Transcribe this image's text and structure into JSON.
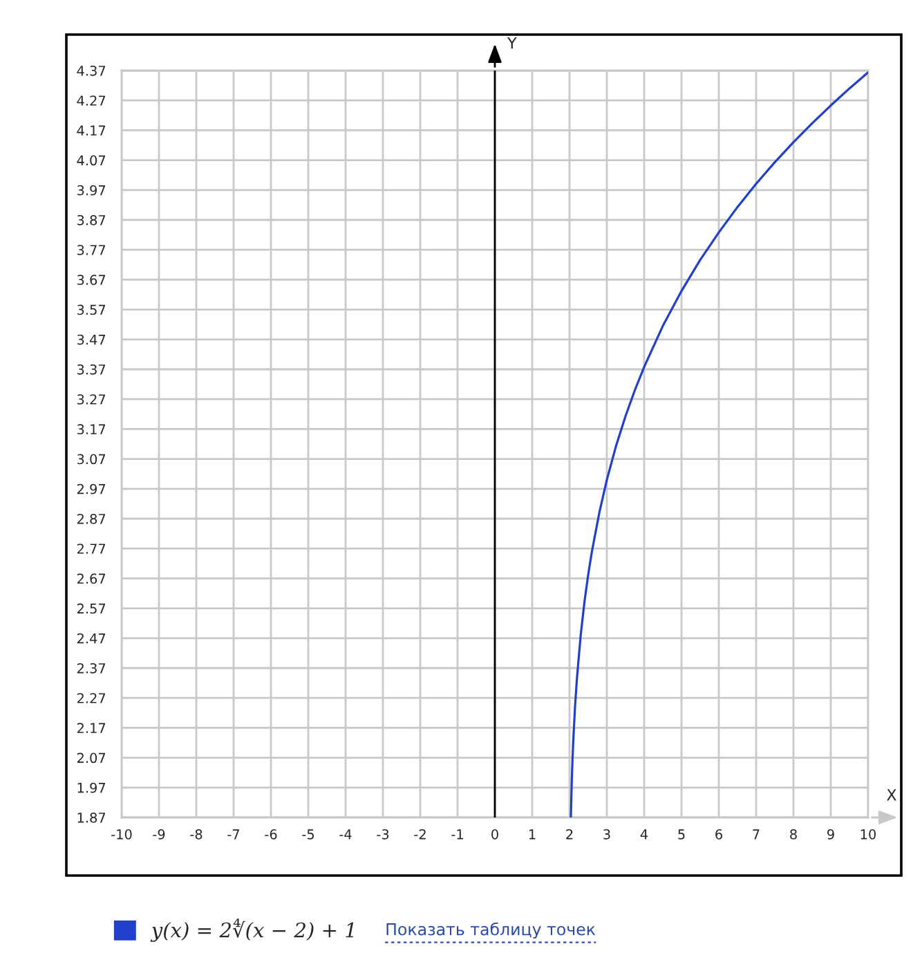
{
  "chart_data": {
    "type": "line",
    "xlabel": "X",
    "ylabel": "Y",
    "x": [
      2.036,
      2.06,
      2.08,
      2.1,
      2.15,
      2.2,
      2.3,
      2.4,
      2.5,
      2.6,
      2.8,
      3,
      3.25,
      3.5,
      3.75,
      4,
      4.5,
      5,
      5.5,
      6,
      6.5,
      7,
      7.5,
      8,
      8.5,
      9,
      9.5,
      10
    ],
    "series": [
      {
        "name": "y(x) = 2∜(x − 2) + 1",
        "color": "#1f3fcc",
        "values": [
          1.87,
          1.99,
          2.064,
          2.125,
          2.245,
          2.337,
          2.48,
          2.591,
          2.682,
          2.76,
          2.891,
          3.0,
          3.115,
          3.213,
          3.3,
          3.378,
          3.515,
          3.632,
          3.736,
          3.828,
          3.913,
          3.991,
          4.063,
          4.13,
          4.193,
          4.253,
          4.31,
          4.364
        ]
      }
    ],
    "xlim": [
      -10,
      10
    ],
    "ylim": [
      1.87,
      4.37
    ],
    "xticks": [
      -10,
      -9,
      -8,
      -7,
      -6,
      -5,
      -4,
      -3,
      -2,
      -1,
      0,
      1,
      2,
      3,
      4,
      5,
      6,
      7,
      8,
      9,
      10
    ],
    "yticks": [
      1.87,
      1.97,
      2.07,
      2.17,
      2.27,
      2.37,
      2.47,
      2.57,
      2.67,
      2.77,
      2.87,
      2.97,
      3.07,
      3.17,
      3.27,
      3.37,
      3.47,
      3.57,
      3.67,
      3.77,
      3.87,
      3.97,
      4.07,
      4.17,
      4.27,
      4.37
    ],
    "grid": true,
    "legend": "bottom left",
    "ref_lines": [
      {
        "axis": "x",
        "value": 0,
        "color": "#000000"
      }
    ],
    "annotations": [
      "Показать таблицу точек"
    ]
  }
}
